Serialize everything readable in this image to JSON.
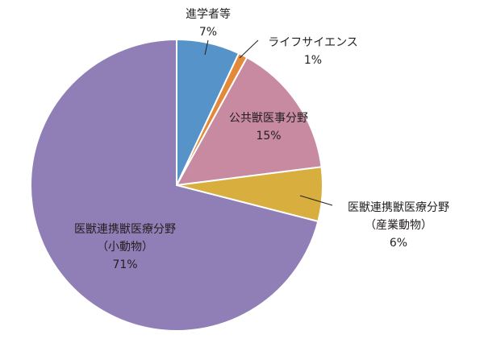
{
  "chart_data": {
    "type": "pie",
    "start_angle_deg": 0,
    "direction": "clockwise",
    "slices": [
      {
        "key": "shingaku",
        "label": [
          "進学者等"
        ],
        "value": 7,
        "value_label": "7%",
        "color": "#5593c8"
      },
      {
        "key": "lifescience",
        "label": [
          "ライフサイエンス"
        ],
        "value": 1,
        "value_label": "1%",
        "color": "#e3893a"
      },
      {
        "key": "koukyou",
        "label": [
          "公共獣医事分野"
        ],
        "value": 15,
        "value_label": "15%",
        "color": "#c78aa0"
      },
      {
        "key": "sangyo",
        "label": [
          "医獣連携獣医療分野",
          "（産業動物）"
        ],
        "value": 6,
        "value_label": "6%",
        "color": "#d8ae3e"
      },
      {
        "key": "shodobutsu",
        "label": [
          "医獣連携獣医療分野",
          "（小動物）"
        ],
        "value": 71,
        "value_label": "71%",
        "color": "#8f7fb6"
      }
    ]
  }
}
